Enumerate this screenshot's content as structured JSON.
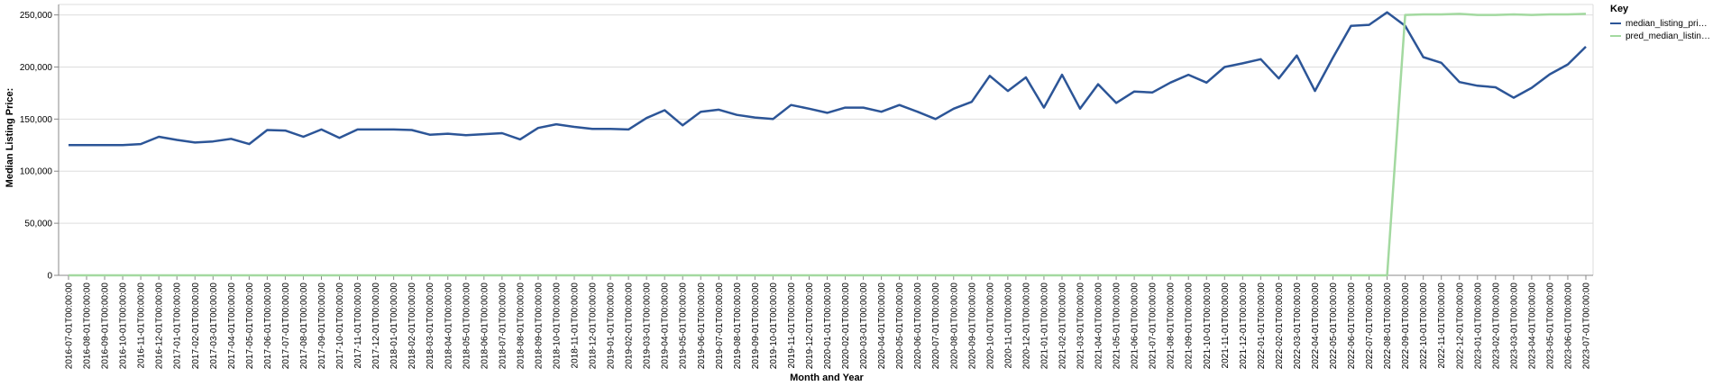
{
  "chart_data": {
    "type": "line",
    "title": "",
    "xlabel": "Month and Year",
    "ylabel": "Median Listing Price:",
    "ylim": [
      0,
      260000
    ],
    "yticks": [
      0,
      50000,
      100000,
      150000,
      200000,
      250000
    ],
    "ytick_labels": [
      "0",
      "50,000",
      "100,000",
      "150,000",
      "200,000",
      "250,000"
    ],
    "grid": true,
    "legend": {
      "title": "Key",
      "placement": "top-right",
      "entries": [
        "median_listing_pri…",
        "pred_median_listin…"
      ]
    },
    "colors": {
      "median_listing_price": "#2c5597",
      "pred_median_listing_price": "#a3d9a0"
    },
    "x": [
      "2016-07-01T00:00:00",
      "2016-08-01T00:00:00",
      "2016-09-01T00:00:00",
      "2016-10-01T00:00:00",
      "2016-11-01T00:00:00",
      "2016-12-01T00:00:00",
      "2017-01-01T00:00:00",
      "2017-02-01T00:00:00",
      "2017-03-01T00:00:00",
      "2017-04-01T00:00:00",
      "2017-05-01T00:00:00",
      "2017-06-01T00:00:00",
      "2017-07-01T00:00:00",
      "2017-08-01T00:00:00",
      "2017-09-01T00:00:00",
      "2017-10-01T00:00:00",
      "2017-11-01T00:00:00",
      "2017-12-01T00:00:00",
      "2018-01-01T00:00:00",
      "2018-02-01T00:00:00",
      "2018-03-01T00:00:00",
      "2018-04-01T00:00:00",
      "2018-05-01T00:00:00",
      "2018-06-01T00:00:00",
      "2018-07-01T00:00:00",
      "2018-08-01T00:00:00",
      "2018-09-01T00:00:00",
      "2018-10-01T00:00:00",
      "2018-11-01T00:00:00",
      "2018-12-01T00:00:00",
      "2019-01-01T00:00:00",
      "2019-02-01T00:00:00",
      "2019-03-01T00:00:00",
      "2019-04-01T00:00:00",
      "2019-05-01T00:00:00",
      "2019-06-01T00:00:00",
      "2019-07-01T00:00:00",
      "2019-08-01T00:00:00",
      "2019-09-01T00:00:00",
      "2019-10-01T00:00:00",
      "2019-11-01T00:00:00",
      "2019-12-01T00:00:00",
      "2020-01-01T00:00:00",
      "2020-02-01T00:00:00",
      "2020-03-01T00:00:00",
      "2020-04-01T00:00:00",
      "2020-05-01T00:00:00",
      "2020-06-01T00:00:00",
      "2020-07-01T00:00:00",
      "2020-08-01T00:00:00",
      "2020-09-01T00:00:00",
      "2020-10-01T00:00:00",
      "2020-11-01T00:00:00",
      "2020-12-01T00:00:00",
      "2021-01-01T00:00:00",
      "2021-02-01T00:00:00",
      "2021-03-01T00:00:00",
      "2021-04-01T00:00:00",
      "2021-05-01T00:00:00",
      "2021-06-01T00:00:00",
      "2021-07-01T00:00:00",
      "2021-08-01T00:00:00",
      "2021-09-01T00:00:00",
      "2021-10-01T00:00:00",
      "2021-11-01T00:00:00",
      "2021-12-01T00:00:00",
      "2022-01-01T00:00:00",
      "2022-02-01T00:00:00",
      "2022-03-01T00:00:00",
      "2022-04-01T00:00:00",
      "2022-05-01T00:00:00",
      "2022-06-01T00:00:00",
      "2022-07-01T00:00:00",
      "2022-08-01T00:00:00",
      "2022-09-01T00:00:00",
      "2022-10-01T00:00:00",
      "2022-11-01T00:00:00",
      "2022-12-01T00:00:00",
      "2023-01-01T00:00:00",
      "2023-02-01T00:00:00",
      "2023-03-01T00:00:00",
      "2023-04-01T00:00:00",
      "2023-05-01T00:00:00",
      "2023-06-01T00:00:00",
      "2023-07-01T00:00:00"
    ],
    "series": [
      {
        "name": "median_listing_pri…",
        "values": [
          125000,
          125000,
          125000,
          125000,
          126000,
          133000,
          130000,
          127500,
          128500,
          131000,
          126000,
          139500,
          139000,
          133000,
          140000,
          132000,
          140000,
          140000,
          140000,
          139500,
          135000,
          136000,
          134500,
          135500,
          136500,
          130500,
          141500,
          145000,
          142500,
          140500,
          140500,
          140000,
          151000,
          158500,
          144000,
          157000,
          159000,
          154000,
          151500,
          150000,
          163500,
          160000,
          156000,
          161000,
          161000,
          157000,
          163500,
          157000,
          150000,
          160000,
          166500,
          191500,
          177000,
          190000,
          161000,
          192500,
          160000,
          183500,
          165500,
          176500,
          175500,
          185000,
          192500,
          185000,
          200000,
          203500,
          207500,
          189000,
          211000,
          177000,
          209000,
          239500,
          240500,
          252500,
          239500,
          209500,
          204000,
          185500,
          182000,
          180500,
          170500,
          180000,
          193000,
          202500,
          219500
        ]
      },
      {
        "name": "pred_median_listin…",
        "values": [
          0,
          0,
          0,
          0,
          0,
          0,
          0,
          0,
          0,
          0,
          0,
          0,
          0,
          0,
          0,
          0,
          0,
          0,
          0,
          0,
          0,
          0,
          0,
          0,
          0,
          0,
          0,
          0,
          0,
          0,
          0,
          0,
          0,
          0,
          0,
          0,
          0,
          0,
          0,
          0,
          0,
          0,
          0,
          0,
          0,
          0,
          0,
          0,
          0,
          0,
          0,
          0,
          0,
          0,
          0,
          0,
          0,
          0,
          0,
          0,
          0,
          0,
          0,
          0,
          0,
          0,
          0,
          0,
          0,
          0,
          0,
          0,
          0,
          0,
          250000,
          250500,
          250500,
          251000,
          250000,
          250000,
          250500,
          250000,
          250500,
          250500,
          251000
        ]
      }
    ]
  }
}
